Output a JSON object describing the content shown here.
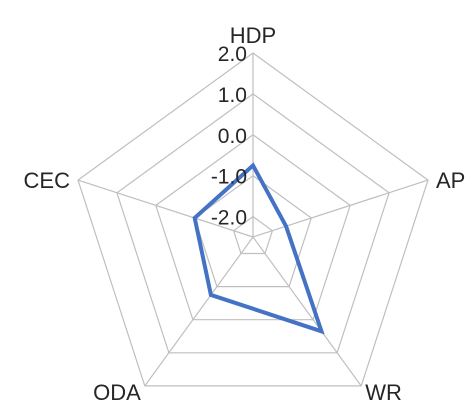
{
  "chart_data": {
    "type": "radar",
    "axes": [
      "HDP",
      "AP",
      "WR",
      "ODA",
      "CEC"
    ],
    "range": [
      -2.5,
      2.0
    ],
    "ticks": [
      {
        "value": -2.0,
        "label": "-2.0"
      },
      {
        "value": -1.0,
        "label": "-1.0"
      },
      {
        "value": 0.0,
        "label": "0.0"
      },
      {
        "value": 1.0,
        "label": "1.0"
      },
      {
        "value": 2.0,
        "label": "2.0"
      }
    ],
    "rings": [
      -2.0,
      -1.0,
      0.0,
      1.0,
      2.0
    ],
    "grid": true,
    "legend": "none",
    "series": [
      {
        "values": [
          -0.75,
          -1.65,
          0.35,
          -0.75,
          -1.0
        ],
        "color": "#4472c4"
      }
    ]
  }
}
